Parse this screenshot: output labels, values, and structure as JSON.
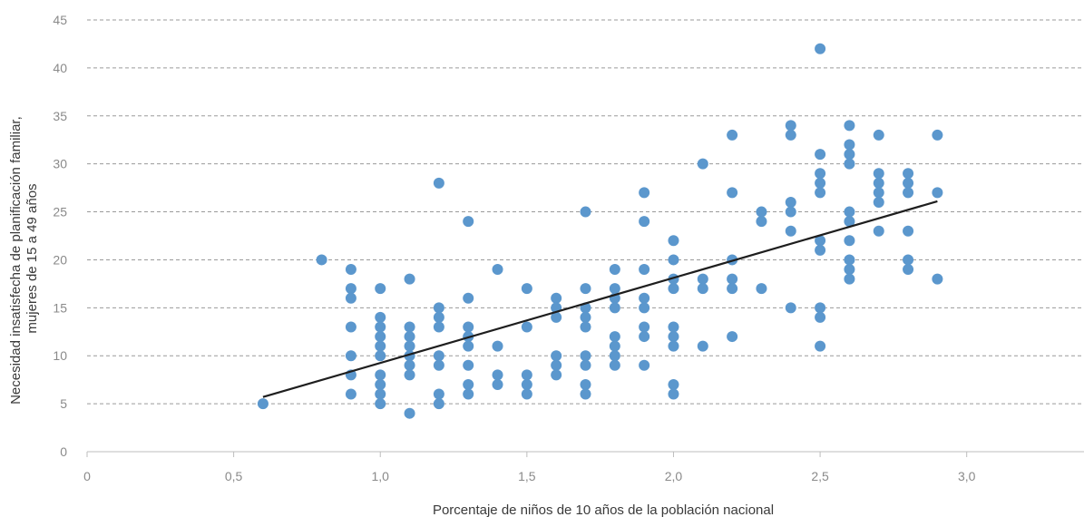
{
  "chart_data": {
    "type": "scatter",
    "xlabel": "Porcentaje de niños de 10 años de la población nacional",
    "ylabel_lines": [
      "Necesidad insatisfecha de planificación familiar,",
      "mujeres de 15 a 49 años"
    ],
    "xlim": [
      0,
      3.4
    ],
    "ylim": [
      0,
      45
    ],
    "x_ticks": [
      0,
      0.5,
      1.0,
      1.5,
      2.0,
      2.5,
      3.0
    ],
    "x_tick_labels": [
      "0",
      "0,5",
      "1,0",
      "1,5",
      "2,0",
      "2,5",
      "3,0"
    ],
    "y_ticks": [
      0,
      5,
      10,
      15,
      20,
      25,
      30,
      35,
      40,
      45
    ],
    "y_tick_labels": [
      "0",
      "5",
      "10",
      "15",
      "20",
      "25",
      "30",
      "35",
      "40",
      "45"
    ],
    "grid": "horizontal dashed",
    "point_color": "#5b97cd",
    "trend_color": "#1e1e1e",
    "trendline": {
      "x": [
        0.6,
        2.9
      ],
      "y": [
        5.7,
        26.1
      ]
    },
    "points": [
      [
        0.6,
        5
      ],
      [
        0.8,
        20
      ],
      [
        0.9,
        19
      ],
      [
        0.9,
        17
      ],
      [
        0.9,
        16
      ],
      [
        0.9,
        13
      ],
      [
        0.9,
        10
      ],
      [
        0.9,
        8
      ],
      [
        0.9,
        6
      ],
      [
        1.0,
        17
      ],
      [
        1.0,
        14
      ],
      [
        1.0,
        13
      ],
      [
        1.0,
        12
      ],
      [
        1.0,
        11
      ],
      [
        1.0,
        10
      ],
      [
        1.0,
        8
      ],
      [
        1.0,
        7
      ],
      [
        1.0,
        6
      ],
      [
        1.0,
        5
      ],
      [
        1.1,
        18
      ],
      [
        1.1,
        13
      ],
      [
        1.1,
        12
      ],
      [
        1.1,
        11
      ],
      [
        1.1,
        10
      ],
      [
        1.1,
        9
      ],
      [
        1.1,
        8
      ],
      [
        1.1,
        4
      ],
      [
        1.2,
        28
      ],
      [
        1.2,
        15
      ],
      [
        1.2,
        14
      ],
      [
        1.2,
        13
      ],
      [
        1.2,
        10
      ],
      [
        1.2,
        9
      ],
      [
        1.2,
        6
      ],
      [
        1.2,
        5
      ],
      [
        1.3,
        24
      ],
      [
        1.3,
        16
      ],
      [
        1.3,
        13
      ],
      [
        1.3,
        12
      ],
      [
        1.3,
        11
      ],
      [
        1.3,
        9
      ],
      [
        1.3,
        7
      ],
      [
        1.3,
        6
      ],
      [
        1.4,
        19
      ],
      [
        1.4,
        11
      ],
      [
        1.4,
        8
      ],
      [
        1.4,
        7
      ],
      [
        1.5,
        17
      ],
      [
        1.5,
        13
      ],
      [
        1.5,
        8
      ],
      [
        1.5,
        7
      ],
      [
        1.5,
        6
      ],
      [
        1.6,
        16
      ],
      [
        1.6,
        15
      ],
      [
        1.6,
        14
      ],
      [
        1.6,
        10
      ],
      [
        1.6,
        9
      ],
      [
        1.6,
        8
      ],
      [
        1.7,
        25
      ],
      [
        1.7,
        17
      ],
      [
        1.7,
        15
      ],
      [
        1.7,
        14
      ],
      [
        1.7,
        13
      ],
      [
        1.7,
        10
      ],
      [
        1.7,
        9
      ],
      [
        1.7,
        7
      ],
      [
        1.7,
        6
      ],
      [
        1.8,
        19
      ],
      [
        1.8,
        17
      ],
      [
        1.8,
        16
      ],
      [
        1.8,
        15
      ],
      [
        1.8,
        12
      ],
      [
        1.8,
        11
      ],
      [
        1.8,
        10
      ],
      [
        1.8,
        9
      ],
      [
        1.9,
        27
      ],
      [
        1.9,
        24
      ],
      [
        1.9,
        19
      ],
      [
        1.9,
        16
      ],
      [
        1.9,
        15
      ],
      [
        1.9,
        13
      ],
      [
        1.9,
        12
      ],
      [
        1.9,
        9
      ],
      [
        2.0,
        22
      ],
      [
        2.0,
        20
      ],
      [
        2.0,
        18
      ],
      [
        2.0,
        17
      ],
      [
        2.0,
        13
      ],
      [
        2.0,
        12
      ],
      [
        2.0,
        11
      ],
      [
        2.0,
        7
      ],
      [
        2.0,
        6
      ],
      [
        2.1,
        30
      ],
      [
        2.1,
        18
      ],
      [
        2.1,
        17
      ],
      [
        2.1,
        11
      ],
      [
        2.2,
        33
      ],
      [
        2.2,
        27
      ],
      [
        2.2,
        20
      ],
      [
        2.2,
        18
      ],
      [
        2.2,
        17
      ],
      [
        2.2,
        12
      ],
      [
        2.3,
        25
      ],
      [
        2.3,
        24
      ],
      [
        2.3,
        17
      ],
      [
        2.4,
        34
      ],
      [
        2.4,
        33
      ],
      [
        2.4,
        26
      ],
      [
        2.4,
        25
      ],
      [
        2.4,
        23
      ],
      [
        2.4,
        15
      ],
      [
        2.5,
        42
      ],
      [
        2.5,
        31
      ],
      [
        2.5,
        29
      ],
      [
        2.5,
        28
      ],
      [
        2.5,
        27
      ],
      [
        2.5,
        22
      ],
      [
        2.5,
        21
      ],
      [
        2.5,
        15
      ],
      [
        2.5,
        14
      ],
      [
        2.5,
        11
      ],
      [
        2.6,
        34
      ],
      [
        2.6,
        32
      ],
      [
        2.6,
        31
      ],
      [
        2.6,
        30
      ],
      [
        2.6,
        25
      ],
      [
        2.6,
        24
      ],
      [
        2.6,
        22
      ],
      [
        2.6,
        20
      ],
      [
        2.6,
        19
      ],
      [
        2.6,
        18
      ],
      [
        2.7,
        33
      ],
      [
        2.7,
        29
      ],
      [
        2.7,
        28
      ],
      [
        2.7,
        27
      ],
      [
        2.7,
        26
      ],
      [
        2.7,
        23
      ],
      [
        2.8,
        29
      ],
      [
        2.8,
        28
      ],
      [
        2.8,
        27
      ],
      [
        2.8,
        23
      ],
      [
        2.8,
        20
      ],
      [
        2.8,
        19
      ],
      [
        2.9,
        33
      ],
      [
        2.9,
        27
      ],
      [
        2.9,
        18
      ]
    ]
  }
}
